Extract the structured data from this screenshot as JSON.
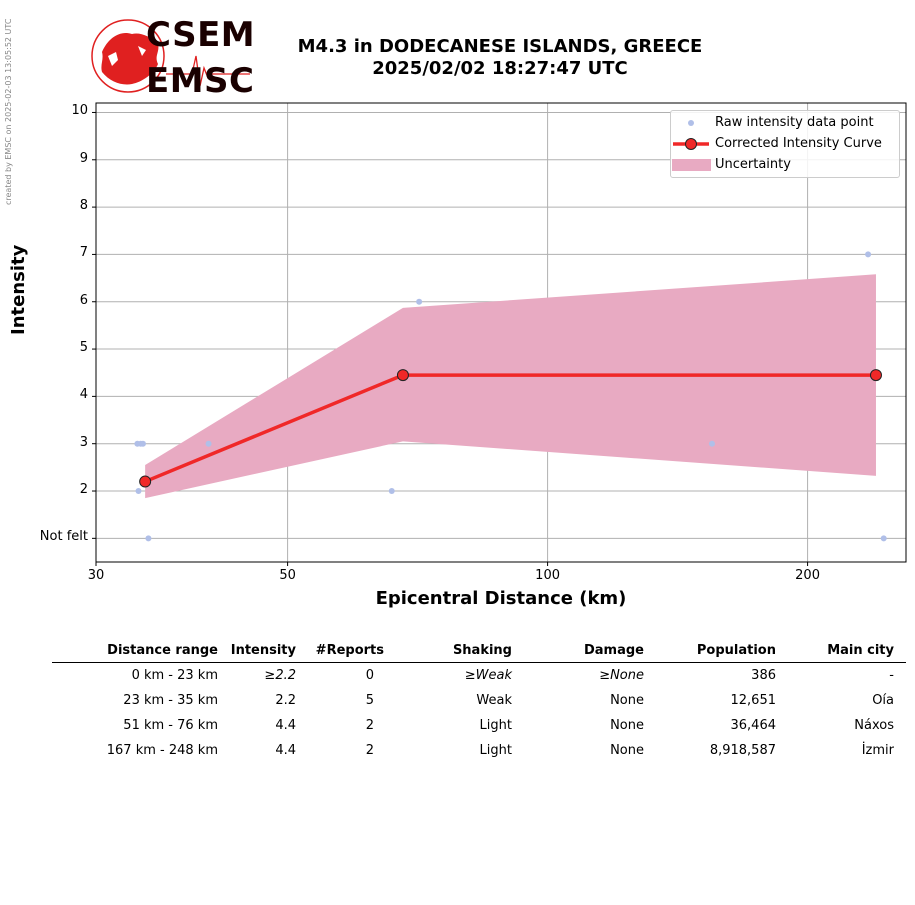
{
  "side_note": "created by EMSC on 2025-02-03 13:05:52 UTC",
  "logo": {
    "line1": "CSEM",
    "line2": "EMSC",
    "accent": "#e02020"
  },
  "title": {
    "line1": "M4.3 in DODECANESE ISLANDS, GREECE",
    "line2": "2025/02/02 18:27:47 UTC"
  },
  "chart_data": {
    "type": "line",
    "xlabel": "Epicentral Distance (km)",
    "ylabel": "Intensity",
    "x_scale": "log",
    "xlim": [
      30,
      260
    ],
    "ylim": [
      0.5,
      10.2
    ],
    "x_ticks": [
      30,
      50,
      100,
      200
    ],
    "y_ticks": [
      {
        "value": 1,
        "label": "Not felt"
      },
      {
        "value": 2,
        "label": "2"
      },
      {
        "value": 3,
        "label": "3"
      },
      {
        "value": 4,
        "label": "4"
      },
      {
        "value": 5,
        "label": "5"
      },
      {
        "value": 6,
        "label": "6"
      },
      {
        "value": 7,
        "label": "7"
      },
      {
        "value": 8,
        "label": "8"
      },
      {
        "value": 9,
        "label": "9"
      },
      {
        "value": 10,
        "label": "10"
      }
    ],
    "grid": true,
    "legend_position": "top-right",
    "series": [
      {
        "name": "Raw intensity data point",
        "kind": "scatter",
        "color": "#b0bfe8",
        "points": [
          [
            33.5,
            3
          ],
          [
            33.8,
            3
          ],
          [
            34.0,
            3
          ],
          [
            33.6,
            2
          ],
          [
            34.5,
            1
          ],
          [
            40.5,
            3
          ],
          [
            66,
            2
          ],
          [
            71,
            6
          ],
          [
            155,
            3
          ],
          [
            235,
            7
          ],
          [
            245,
            1
          ]
        ]
      },
      {
        "name": "Corrected Intensity Curve",
        "kind": "line",
        "color": "#f02828",
        "points": [
          [
            34.2,
            2.2
          ],
          [
            68,
            4.45
          ],
          [
            240,
            4.45
          ]
        ]
      },
      {
        "name": "Uncertainty",
        "kind": "band",
        "color": "#e8aac2",
        "x": [
          34.2,
          68,
          240
        ],
        "lower": [
          1.85,
          3.05,
          2.32
        ],
        "upper": [
          2.55,
          5.87,
          6.58
        ]
      }
    ]
  },
  "table": {
    "headers": [
      "Distance range",
      "Intensity",
      "#Reports",
      "Shaking",
      "Damage",
      "Population",
      "Main city"
    ],
    "rows": [
      {
        "range": "0 km -   23 km",
        "intensity": "≥2.2",
        "reports": "0",
        "shaking": "≥Weak",
        "damage": "≥None",
        "population": "386",
        "city": "-"
      },
      {
        "range": "23 km -   35 km",
        "intensity": "2.2",
        "reports": "5",
        "shaking": "Weak",
        "damage": "None",
        "population": "12,651",
        "city": "Oía"
      },
      {
        "range": "51 km -   76 km",
        "intensity": "4.4",
        "reports": "2",
        "shaking": "Light",
        "damage": "None",
        "population": "36,464",
        "city": "Náxos"
      },
      {
        "range": "167 km -  248 km",
        "intensity": "4.4",
        "reports": "2",
        "shaking": "Light",
        "damage": "None",
        "population": "8,918,587",
        "city": "İzmir"
      }
    ]
  }
}
